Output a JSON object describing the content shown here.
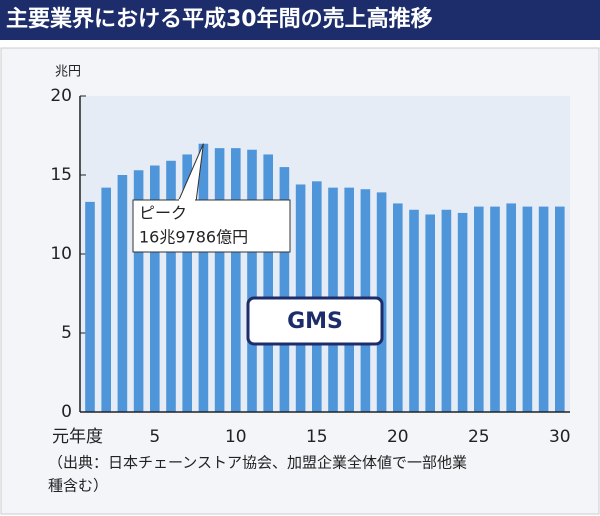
{
  "chart_data": {
    "type": "bar",
    "title": "主要業界における平成30年間の売上高推移",
    "y_label": "兆円",
    "categories": [
      "元年度",
      null,
      null,
      null,
      "5",
      null,
      null,
      null,
      null,
      "10",
      null,
      null,
      null,
      null,
      "15",
      null,
      null,
      null,
      null,
      "20",
      null,
      null,
      null,
      null,
      "25",
      null,
      null,
      null,
      null,
      "30"
    ],
    "values": [
      13.3,
      14.2,
      15.0,
      15.3,
      15.6,
      15.9,
      16.3,
      16.9786,
      16.7,
      16.7,
      16.6,
      16.3,
      15.5,
      14.4,
      14.6,
      14.2,
      14.2,
      14.1,
      13.9,
      13.2,
      12.8,
      12.5,
      12.8,
      12.6,
      13.0,
      13.0,
      13.2,
      13.0,
      13.0,
      13.0
    ],
    "color": "#4e95d9",
    "ylim": [
      0,
      20
    ],
    "yticks": [
      0,
      5,
      10,
      15,
      20
    ],
    "grid": false,
    "annotation": {
      "lines": [
        "ピーク",
        "16兆9786億円"
      ],
      "category_index": 7
    },
    "series_label": "GMS",
    "source": [
      "（出典：日本チェーンストア協会、加盟企業全体値で一部他業",
      "種含む）"
    ]
  }
}
